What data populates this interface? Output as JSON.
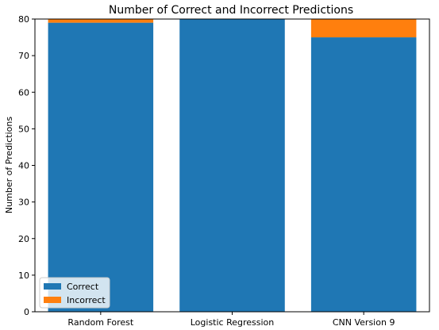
{
  "chart_data": {
    "type": "bar",
    "stacked": true,
    "title": "Number of Correct and Incorrect Predictions",
    "xlabel": "",
    "ylabel": "Number of Predictions",
    "categories": [
      "Random Forest",
      "Logistic Regression",
      "CNN Version 9"
    ],
    "series": [
      {
        "name": "Correct",
        "values": [
          79,
          80,
          75
        ],
        "color": "#1f77b4"
      },
      {
        "name": "Incorrect",
        "values": [
          1,
          0,
          5
        ],
        "color": "#ff7f0e"
      }
    ],
    "ylim": [
      0,
      80
    ],
    "yticks": [
      0,
      10,
      20,
      30,
      40,
      50,
      60,
      70,
      80
    ],
    "grid": false,
    "legend_position": "lower-left"
  }
}
